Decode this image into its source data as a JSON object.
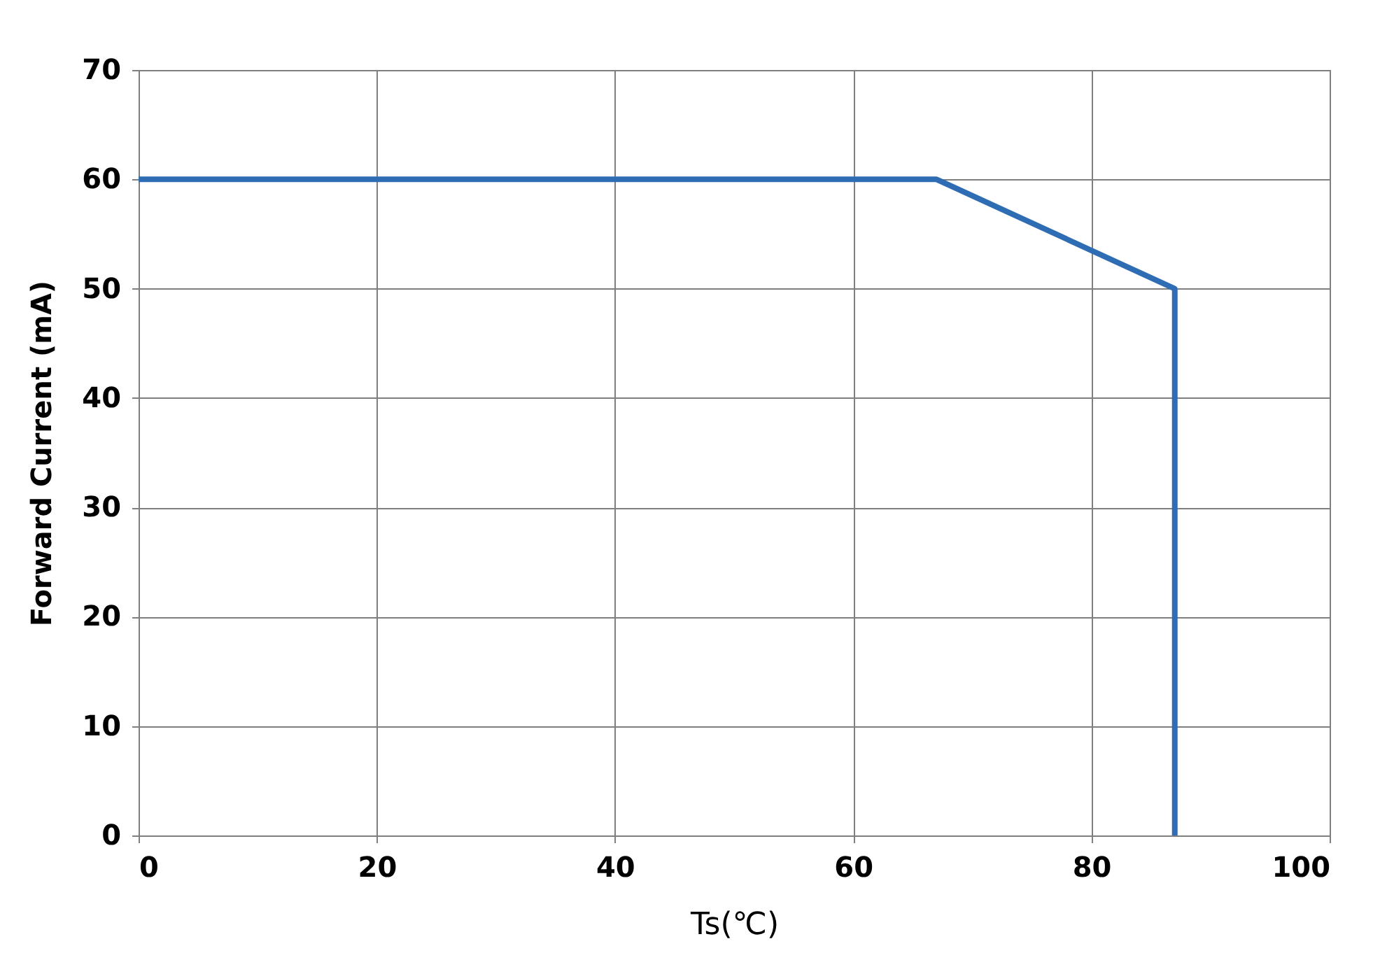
{
  "chart_data": {
    "type": "line",
    "xlabel": "Ts(℃)",
    "ylabel": "Forward Current (mA)",
    "x": [
      0,
      67,
      87,
      87
    ],
    "series": [
      {
        "color": "#2e6db4",
        "values": [
          60,
          60,
          50,
          0
        ]
      }
    ],
    "xlim": [
      0,
      100
    ],
    "xticks": [
      0,
      20,
      40,
      60,
      80,
      100
    ],
    "ylim": [
      0,
      70
    ],
    "yticks": [
      0,
      10,
      20,
      30,
      40,
      50,
      60,
      70
    ],
    "grid": true,
    "marker": "none",
    "line_style": "solid"
  }
}
